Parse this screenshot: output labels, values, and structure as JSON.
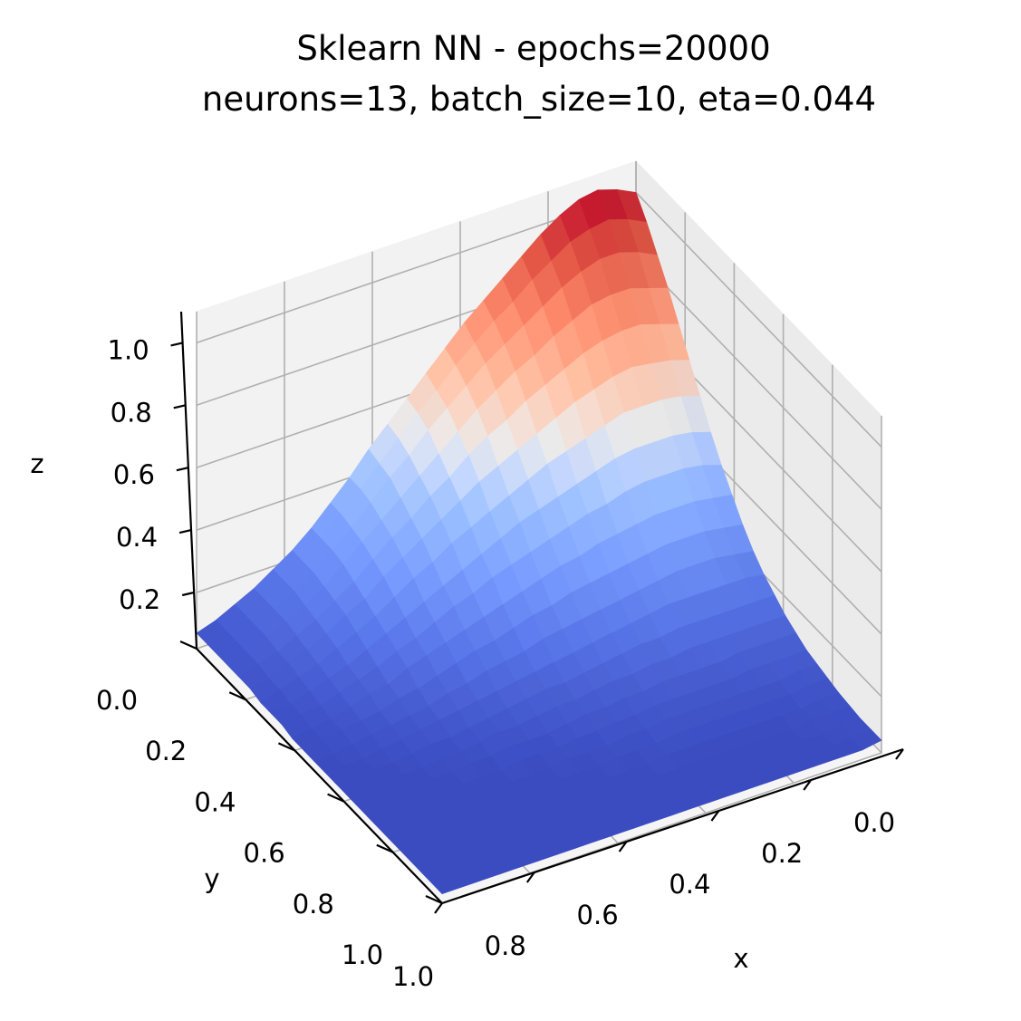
{
  "chart_data": {
    "type": "surface",
    "title_lines": [
      "Sklearn NN - epochs=20000",
      "neurons=13, batch_size=10, eta=0.044"
    ],
    "xlabel": "x",
    "ylabel": "y",
    "zlabel": "z",
    "x_ticks": [
      "0.0",
      "0.2",
      "0.4",
      "0.6",
      "0.8",
      "1.0"
    ],
    "y_ticks": [
      "0.0",
      "0.2",
      "0.4",
      "0.6",
      "0.8",
      "1.0"
    ],
    "z_ticks": [
      "0.2",
      "0.4",
      "0.6",
      "0.8",
      "1.0"
    ],
    "x_tick_values": [
      0,
      0.2,
      0.4,
      0.6,
      0.8,
      1.0
    ],
    "y_tick_values": [
      0,
      0.2,
      0.4,
      0.6,
      0.8,
      1.0
    ],
    "z_tick_values": [
      0.2,
      0.4,
      0.6,
      0.8,
      1.0
    ],
    "xlim": [
      0,
      1
    ],
    "ylim": [
      0,
      1
    ],
    "zlim": [
      0.02,
      1.1
    ],
    "colormap": "coolwarm",
    "colors": {
      "cold": "#3b4cc0",
      "neutral": "#dddddd",
      "hot": "#b40426",
      "pane": "#f2f2f2",
      "grid": "#b0b0b0"
    },
    "grid": true,
    "x": [
      0.0,
      0.0435,
      0.087,
      0.1304,
      0.1739,
      0.2174,
      0.2609,
      0.3043,
      0.3478,
      0.3913,
      0.4348,
      0.4783,
      0.5217,
      0.5652,
      0.6087,
      0.6522,
      0.6957,
      0.7391,
      0.7826,
      0.8261,
      0.8696,
      0.913,
      0.9565,
      1.0
    ],
    "y": [
      0.0,
      0.0435,
      0.087,
      0.1304,
      0.1739,
      0.2174,
      0.2609,
      0.3043,
      0.3478,
      0.3913,
      0.4348,
      0.4783,
      0.5217,
      0.5652,
      0.6087,
      0.6522,
      0.6957,
      0.7391,
      0.7826,
      0.8261,
      0.8696,
      0.913,
      0.9565,
      1.0
    ],
    "z": [
      [
        1.0,
        0.94,
        0.87,
        0.8,
        0.72,
        0.64,
        0.56,
        0.48,
        0.41,
        0.35,
        0.29,
        0.24,
        0.2,
        0.17,
        0.14,
        0.12,
        0.1,
        0.09,
        0.08,
        0.07,
        0.065,
        0.06,
        0.06,
        0.06
      ],
      [
        1.03,
        0.97,
        0.9,
        0.82,
        0.74,
        0.66,
        0.58,
        0.5,
        0.43,
        0.36,
        0.3,
        0.25,
        0.21,
        0.17,
        0.14,
        0.12,
        0.1,
        0.09,
        0.08,
        0.07,
        0.06,
        0.06,
        0.05,
        0.05
      ],
      [
        1.05,
        0.99,
        0.92,
        0.84,
        0.76,
        0.67,
        0.59,
        0.51,
        0.44,
        0.37,
        0.31,
        0.26,
        0.21,
        0.17,
        0.14,
        0.12,
        0.1,
        0.08,
        0.07,
        0.06,
        0.06,
        0.05,
        0.05,
        0.05
      ],
      [
        1.04,
        0.98,
        0.92,
        0.84,
        0.76,
        0.68,
        0.59,
        0.51,
        0.44,
        0.37,
        0.31,
        0.26,
        0.21,
        0.17,
        0.14,
        0.12,
        0.1,
        0.08,
        0.07,
        0.06,
        0.05,
        0.05,
        0.05,
        0.05
      ],
      [
        1.01,
        0.96,
        0.9,
        0.83,
        0.75,
        0.67,
        0.59,
        0.51,
        0.44,
        0.37,
        0.31,
        0.26,
        0.21,
        0.17,
        0.14,
        0.11,
        0.09,
        0.08,
        0.07,
        0.06,
        0.05,
        0.05,
        0.05,
        0.05
      ],
      [
        0.97,
        0.92,
        0.87,
        0.8,
        0.73,
        0.65,
        0.57,
        0.5,
        0.43,
        0.36,
        0.3,
        0.25,
        0.21,
        0.17,
        0.14,
        0.11,
        0.09,
        0.08,
        0.07,
        0.06,
        0.05,
        0.05,
        0.05,
        0.05
      ],
      [
        0.92,
        0.88,
        0.83,
        0.77,
        0.7,
        0.63,
        0.55,
        0.48,
        0.41,
        0.35,
        0.29,
        0.24,
        0.2,
        0.16,
        0.13,
        0.11,
        0.09,
        0.08,
        0.07,
        0.06,
        0.05,
        0.05,
        0.05,
        0.05
      ],
      [
        0.87,
        0.83,
        0.79,
        0.73,
        0.67,
        0.6,
        0.53,
        0.46,
        0.4,
        0.34,
        0.28,
        0.23,
        0.19,
        0.16,
        0.13,
        0.11,
        0.09,
        0.08,
        0.07,
        0.06,
        0.05,
        0.05,
        0.05,
        0.05
      ],
      [
        0.82,
        0.79,
        0.75,
        0.7,
        0.64,
        0.57,
        0.51,
        0.44,
        0.38,
        0.32,
        0.27,
        0.22,
        0.18,
        0.15,
        0.12,
        0.1,
        0.09,
        0.08,
        0.07,
        0.06,
        0.05,
        0.05,
        0.05,
        0.05
      ],
      [
        0.77,
        0.74,
        0.71,
        0.66,
        0.6,
        0.54,
        0.48,
        0.42,
        0.36,
        0.31,
        0.26,
        0.21,
        0.17,
        0.14,
        0.12,
        0.1,
        0.08,
        0.07,
        0.06,
        0.06,
        0.05,
        0.05,
        0.05,
        0.05
      ],
      [
        0.71,
        0.69,
        0.66,
        0.62,
        0.57,
        0.51,
        0.45,
        0.4,
        0.34,
        0.29,
        0.24,
        0.2,
        0.16,
        0.13,
        0.11,
        0.09,
        0.08,
        0.07,
        0.06,
        0.05,
        0.05,
        0.05,
        0.05,
        0.05
      ],
      [
        0.65,
        0.63,
        0.61,
        0.57,
        0.53,
        0.48,
        0.42,
        0.37,
        0.32,
        0.27,
        0.23,
        0.19,
        0.15,
        0.12,
        0.1,
        0.09,
        0.07,
        0.06,
        0.06,
        0.05,
        0.05,
        0.05,
        0.05,
        0.05
      ],
      [
        0.59,
        0.58,
        0.56,
        0.52,
        0.48,
        0.44,
        0.39,
        0.34,
        0.3,
        0.25,
        0.21,
        0.17,
        0.14,
        0.12,
        0.1,
        0.08,
        0.07,
        0.06,
        0.05,
        0.05,
        0.05,
        0.05,
        0.05,
        0.05
      ],
      [
        0.53,
        0.52,
        0.5,
        0.47,
        0.44,
        0.4,
        0.36,
        0.31,
        0.27,
        0.23,
        0.19,
        0.16,
        0.13,
        0.11,
        0.09,
        0.07,
        0.06,
        0.06,
        0.05,
        0.05,
        0.05,
        0.05,
        0.05,
        0.05
      ],
      [
        0.47,
        0.46,
        0.45,
        0.42,
        0.39,
        0.36,
        0.32,
        0.28,
        0.25,
        0.21,
        0.18,
        0.15,
        0.12,
        0.1,
        0.08,
        0.07,
        0.06,
        0.05,
        0.05,
        0.05,
        0.05,
        0.05,
        0.05,
        0.05
      ],
      [
        0.4,
        0.4,
        0.39,
        0.37,
        0.35,
        0.32,
        0.29,
        0.25,
        0.22,
        0.19,
        0.16,
        0.13,
        0.11,
        0.09,
        0.08,
        0.07,
        0.06,
        0.05,
        0.05,
        0.05,
        0.05,
        0.05,
        0.05,
        0.05
      ],
      [
        0.34,
        0.34,
        0.33,
        0.32,
        0.3,
        0.28,
        0.25,
        0.22,
        0.19,
        0.17,
        0.14,
        0.12,
        0.1,
        0.08,
        0.07,
        0.06,
        0.05,
        0.05,
        0.05,
        0.05,
        0.05,
        0.05,
        0.05,
        0.05
      ],
      [
        0.28,
        0.28,
        0.28,
        0.27,
        0.25,
        0.23,
        0.21,
        0.19,
        0.17,
        0.15,
        0.12,
        0.1,
        0.09,
        0.07,
        0.06,
        0.06,
        0.05,
        0.05,
        0.05,
        0.05,
        0.05,
        0.05,
        0.05,
        0.05
      ],
      [
        0.23,
        0.23,
        0.23,
        0.22,
        0.21,
        0.2,
        0.18,
        0.16,
        0.14,
        0.12,
        0.11,
        0.09,
        0.08,
        0.07,
        0.06,
        0.05,
        0.05,
        0.05,
        0.05,
        0.05,
        0.05,
        0.05,
        0.05,
        0.05
      ],
      [
        0.19,
        0.19,
        0.19,
        0.18,
        0.17,
        0.16,
        0.15,
        0.13,
        0.12,
        0.11,
        0.09,
        0.08,
        0.07,
        0.06,
        0.05,
        0.05,
        0.05,
        0.05,
        0.05,
        0.05,
        0.05,
        0.05,
        0.05,
        0.05
      ],
      [
        0.15,
        0.15,
        0.15,
        0.15,
        0.14,
        0.13,
        0.12,
        0.11,
        0.1,
        0.09,
        0.08,
        0.07,
        0.06,
        0.05,
        0.05,
        0.05,
        0.05,
        0.05,
        0.05,
        0.05,
        0.05,
        0.05,
        0.05,
        0.05
      ],
      [
        0.12,
        0.12,
        0.12,
        0.12,
        0.11,
        0.11,
        0.1,
        0.09,
        0.08,
        0.07,
        0.07,
        0.06,
        0.05,
        0.05,
        0.05,
        0.05,
        0.05,
        0.05,
        0.05,
        0.05,
        0.05,
        0.05,
        0.05,
        0.05
      ],
      [
        0.09,
        0.09,
        0.09,
        0.09,
        0.09,
        0.08,
        0.08,
        0.07,
        0.07,
        0.06,
        0.06,
        0.05,
        0.05,
        0.05,
        0.05,
        0.05,
        0.05,
        0.05,
        0.05,
        0.05,
        0.05,
        0.05,
        0.05,
        0.05
      ],
      [
        0.07,
        0.07,
        0.07,
        0.07,
        0.07,
        0.07,
        0.06,
        0.06,
        0.06,
        0.05,
        0.05,
        0.05,
        0.05,
        0.05,
        0.05,
        0.05,
        0.05,
        0.05,
        0.05,
        0.05,
        0.05,
        0.05,
        0.05,
        0.05
      ]
    ]
  }
}
